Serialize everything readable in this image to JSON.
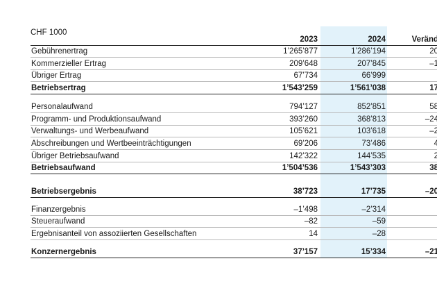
{
  "table": {
    "unit": "CHF 1000",
    "columns": [
      "2023",
      "2024",
      "Veränd"
    ],
    "sections": [
      {
        "rows": [
          {
            "label": "Gebührenertrag",
            "values": [
              "1’265’877",
              "1’286’194",
              "20"
            ]
          },
          {
            "label": "Kommerzieller Ertrag",
            "values": [
              "209’648",
              "207’845",
              "–1"
            ]
          },
          {
            "label": "Übriger Ertrag",
            "values": [
              "67’734",
              "66’999",
              null
            ]
          },
          {
            "label": "Betriebsertrag",
            "values": [
              "1’543’259",
              "1’561’038",
              "17"
            ],
            "bold": true
          }
        ]
      },
      {
        "rows": [
          {
            "label": "Personalaufwand",
            "values": [
              "794’127",
              "852’851",
              "58"
            ]
          },
          {
            "label": "Programm- und Produktionsaufwand",
            "values": [
              "393’260",
              "368’813",
              "–24"
            ]
          },
          {
            "label": "Verwaltungs- und Werbeaufwand",
            "values": [
              "105’621",
              "103’618",
              "–2"
            ]
          },
          {
            "label": "Abschreibungen und Wertbeeinträchtigungen",
            "values": [
              "69’206",
              "73’486",
              "4"
            ]
          },
          {
            "label": "Übriger Betriebsaufwand",
            "values": [
              "142’322",
              "144’535",
              "2"
            ]
          },
          {
            "label": "Betriebsaufwand",
            "values": [
              "1’504’536",
              "1’543’303",
              "38"
            ],
            "bold": true
          }
        ]
      },
      {
        "rows": [
          {
            "label": "Betriebsergebnis",
            "values": [
              "38’723",
              "17’735",
              "–20"
            ],
            "bold": true
          }
        ]
      },
      {
        "rows": [
          {
            "label": "Finanzergebnis",
            "values": [
              "–1’498",
              "–2’314",
              null
            ]
          },
          {
            "label": "Steueraufwand",
            "values": [
              "–82",
              "–59",
              null
            ]
          },
          {
            "label": "Ergebnisanteil von assoziierten Gesellschaften",
            "values": [
              "14",
              "–28",
              null
            ]
          }
        ]
      },
      {
        "rows": [
          {
            "label": "Konzernergebnis",
            "values": [
              "37’157",
              "15’334",
              "–21"
            ],
            "bold": true
          }
        ]
      }
    ]
  }
}
